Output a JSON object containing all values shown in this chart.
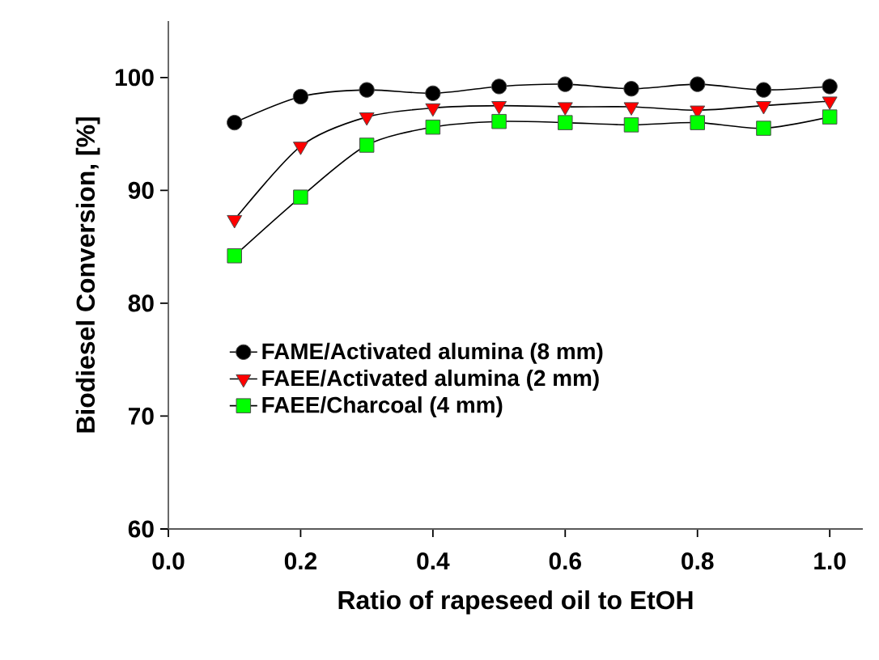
{
  "chart_data": {
    "type": "line",
    "xlabel": "Ratio of rapeseed oil to EtOH",
    "ylabel": "Biodiesel Conversion, [%]",
    "x": [
      0.1,
      0.2,
      0.3,
      0.4,
      0.5,
      0.6,
      0.7,
      0.8,
      0.9,
      1.0
    ],
    "series": [
      {
        "name": "FAME/Activated alumina (8 mm)",
        "color": "#000000",
        "marker": "circle",
        "values": [
          96.0,
          98.3,
          98.9,
          98.6,
          99.2,
          99.4,
          99.0,
          99.4,
          98.9,
          99.2
        ]
      },
      {
        "name": "FAEE/Activated alumina (2 mm)",
        "color": "#ff0000",
        "marker": "triangle",
        "values": [
          87.4,
          93.9,
          96.5,
          97.3,
          97.5,
          97.4,
          97.4,
          97.1,
          97.5,
          97.9
        ]
      },
      {
        "name": "FAEE/Charcoal (4 mm)",
        "color": "#00ff00",
        "marker": "square",
        "values": [
          84.2,
          89.4,
          94.0,
          95.6,
          96.1,
          96.0,
          95.8,
          96.0,
          95.5,
          96.5
        ]
      }
    ],
    "xlim": [
      0,
      1.05
    ],
    "ylim": [
      60,
      105
    ],
    "xticks": [
      {
        "value": 0,
        "label": "0.0"
      },
      {
        "value": 0.2,
        "label": "0.2"
      },
      {
        "value": 0.4,
        "label": "0.4"
      },
      {
        "value": 0.6,
        "label": "0.6"
      },
      {
        "value": 0.8,
        "label": "0.8"
      },
      {
        "value": 1.0,
        "label": "1.0"
      }
    ],
    "yticks": [
      60,
      70,
      80,
      90,
      100
    ],
    "grid": false,
    "legend": "bottom",
    "line_style": "solid"
  }
}
